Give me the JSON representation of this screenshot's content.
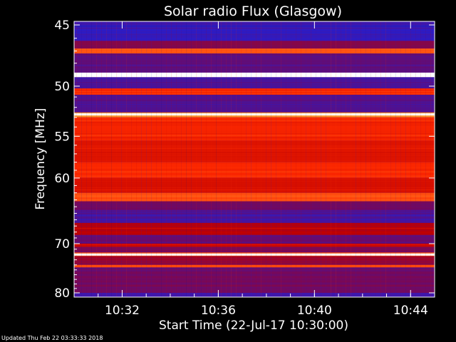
{
  "chart_data": {
    "type": "heatmap",
    "title": "Solar radio Flux (Glasgow)",
    "ylabel": "Frequency [MHz]",
    "xlabel": "Start Time (22-Jul-17 10:30:00)",
    "y_ticks": [
      "45",
      "50",
      "55",
      "60",
      "70",
      "80"
    ],
    "x_ticks": [
      "10:32",
      "10:36",
      "10:40",
      "10:44"
    ],
    "y_range_mhz": [
      45,
      80
    ],
    "y_scale": "reciprocal",
    "x_range": [
      "10:30:00",
      "10:45:00"
    ],
    "colormap": [
      "#10106a",
      "#2020d8",
      "#6a0a6a",
      "#c00000",
      "#ff2a00",
      "#ff9a30",
      "#ffff90",
      "#ffffff"
    ],
    "bands": [
      {
        "from": 45.0,
        "to": 46.2,
        "intensity": 0.18
      },
      {
        "from": 46.2,
        "to": 46.8,
        "intensity": 0.32
      },
      {
        "from": 46.8,
        "to": 47.2,
        "intensity": 0.62
      },
      {
        "from": 47.2,
        "to": 48.8,
        "intensity": 0.26
      },
      {
        "from": 48.8,
        "to": 49.2,
        "intensity": 1.0
      },
      {
        "from": 49.2,
        "to": 50.2,
        "intensity": 0.22
      },
      {
        "from": 50.2,
        "to": 50.8,
        "intensity": 0.55
      },
      {
        "from": 50.8,
        "to": 52.5,
        "intensity": 0.24
      },
      {
        "from": 52.5,
        "to": 53.0,
        "intensity": 0.7
      },
      {
        "from": 53.0,
        "to": 55.5,
        "intensity": 0.55
      },
      {
        "from": 55.5,
        "to": 58.0,
        "intensity": 0.5
      },
      {
        "from": 58.0,
        "to": 60.0,
        "intensity": 0.56
      },
      {
        "from": 60.0,
        "to": 62.0,
        "intensity": 0.48
      },
      {
        "from": 62.0,
        "to": 63.2,
        "intensity": 0.62
      },
      {
        "from": 63.2,
        "to": 64.5,
        "intensity": 0.3
      },
      {
        "from": 64.5,
        "to": 66.5,
        "intensity": 0.22
      },
      {
        "from": 66.5,
        "to": 68.5,
        "intensity": 0.42
      },
      {
        "from": 68.5,
        "to": 70.0,
        "intensity": 0.28
      },
      {
        "from": 70.0,
        "to": 70.6,
        "intensity": 0.45
      },
      {
        "from": 70.6,
        "to": 71.6,
        "intensity": 0.3
      },
      {
        "from": 71.6,
        "to": 72.3,
        "intensity": 0.62
      },
      {
        "from": 72.3,
        "to": 74.0,
        "intensity": 0.36
      },
      {
        "from": 74.0,
        "to": 74.5,
        "intensity": 0.62
      },
      {
        "from": 74.5,
        "to": 80.0,
        "intensity": 0.3
      }
    ],
    "bright_lines_mhz": [
      48.9,
      52.7,
      72.0
    ]
  },
  "footer": "Updated Thu Feb 22 03:33:33 2018"
}
